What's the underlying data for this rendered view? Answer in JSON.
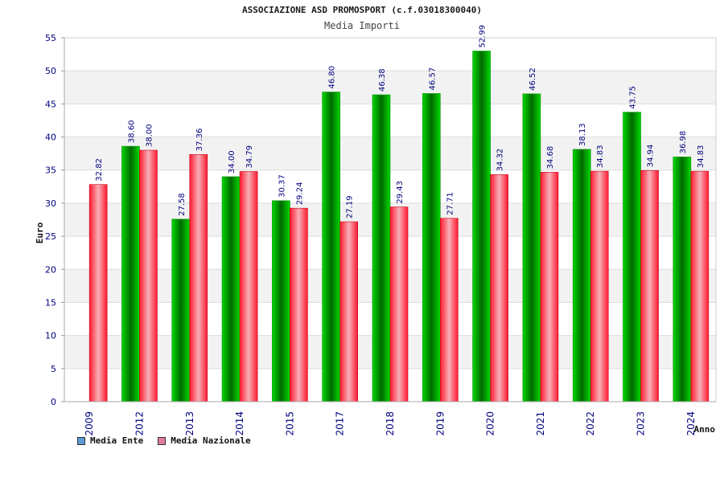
{
  "header": {
    "title": "ASSOCIAZIONE ASD PROMOSPORT (c.f.03018300040)",
    "subtitle": "Media Importi"
  },
  "chart_data": {
    "type": "bar",
    "title": "ASSOCIAZIONE ASD PROMOSPORT (c.f.03018300040)",
    "subtitle": "Media Importi",
    "xlabel": "Anno",
    "ylabel": "Euro",
    "ylim": [
      0,
      55
    ],
    "yticks": [
      0,
      5,
      10,
      15,
      20,
      25,
      30,
      35,
      40,
      45,
      50,
      55
    ],
    "grid": true,
    "legend_position": "bottom-left",
    "categories": [
      "2009",
      "2012",
      "2013",
      "2014",
      "2015",
      "2017",
      "2018",
      "2019",
      "2020",
      "2021",
      "2022",
      "2023",
      "2024"
    ],
    "series": [
      {
        "name": "Media Ente",
        "values": [
          null,
          38.6,
          27.58,
          34.0,
          30.37,
          46.8,
          46.38,
          46.57,
          52.99,
          46.52,
          38.13,
          43.75,
          36.98
        ],
        "labels": [
          "",
          "38.60",
          "27.58",
          "34.00",
          "30.37",
          "46.80",
          "46.38",
          "46.57",
          "52.99",
          "46.52",
          "38.13",
          "43.75",
          "36.98"
        ],
        "color": "#00c800",
        "legend_color": "#5b9bd5"
      },
      {
        "name": "Media Nazionale",
        "values": [
          32.82,
          38.0,
          37.36,
          34.79,
          29.24,
          27.19,
          29.43,
          27.71,
          34.32,
          34.68,
          34.83,
          34.94,
          34.83
        ],
        "labels": [
          "32.82",
          "38.00",
          "37.36",
          "34.79",
          "29.24",
          "27.19",
          "29.43",
          "27.71",
          "34.32",
          "34.68",
          "34.83",
          "34.94",
          "34.83"
        ],
        "color": "#f0142a",
        "legend_color": "#e07aa0"
      }
    ]
  }
}
